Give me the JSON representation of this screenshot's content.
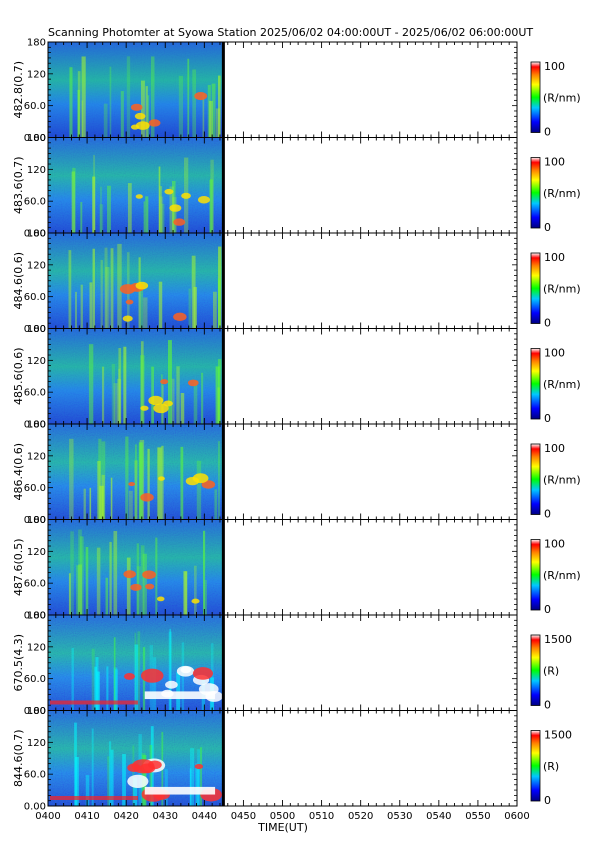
{
  "chart_data": {
    "type": "heatmap",
    "title": "Scanning Photomter at Syowa Station  2025/06/02 04:00:00UT - 2025/06/02 06:00:00UT",
    "xlabel": "TIME(UT)",
    "x_ticks": [
      "0400",
      "0410",
      "0420",
      "0430",
      "0440",
      "0450",
      "0500",
      "0510",
      "0520",
      "0530",
      "0540",
      "0550",
      "0600"
    ],
    "xlim": [
      "0400",
      "0600"
    ],
    "data_end": "0445",
    "y_ticks": [
      "0.00",
      "60.0",
      "120",
      "180"
    ],
    "ylim": [
      0,
      180
    ],
    "panels": [
      {
        "label": "482.8(0.7)",
        "cbar_max": "100",
        "cbar_min": "0",
        "unit": "(R/nm)",
        "intensity": 0.3,
        "style": "noise"
      },
      {
        "label": "483.6(0.7)",
        "cbar_max": "100",
        "cbar_min": "0",
        "unit": "(R/nm)",
        "intensity": 0.45,
        "style": "noise"
      },
      {
        "label": "484.6(0.6)",
        "cbar_max": "100",
        "cbar_min": "0",
        "unit": "(R/nm)",
        "intensity": 0.45,
        "style": "noise"
      },
      {
        "label": "485.6(0.6)",
        "cbar_max": "100",
        "cbar_min": "0",
        "unit": "(R/nm)",
        "intensity": 0.42,
        "style": "noise"
      },
      {
        "label": "486.4(0.6)",
        "cbar_max": "100",
        "cbar_min": "0",
        "unit": "(R/nm)",
        "intensity": 0.55,
        "style": "noise"
      },
      {
        "label": "487.6(0.5)",
        "cbar_max": "100",
        "cbar_min": "0",
        "unit": "(R/nm)",
        "intensity": 0.48,
        "style": "noise"
      },
      {
        "label": "670.5(4.3)",
        "cbar_max": "1500",
        "cbar_min": "0",
        "unit": "(R)",
        "intensity": 0.6,
        "style": "smooth"
      },
      {
        "label": "844.6(0.7)",
        "cbar_max": "1500",
        "cbar_min": "0",
        "unit": "(R)",
        "intensity": 0.6,
        "style": "smooth"
      }
    ]
  }
}
